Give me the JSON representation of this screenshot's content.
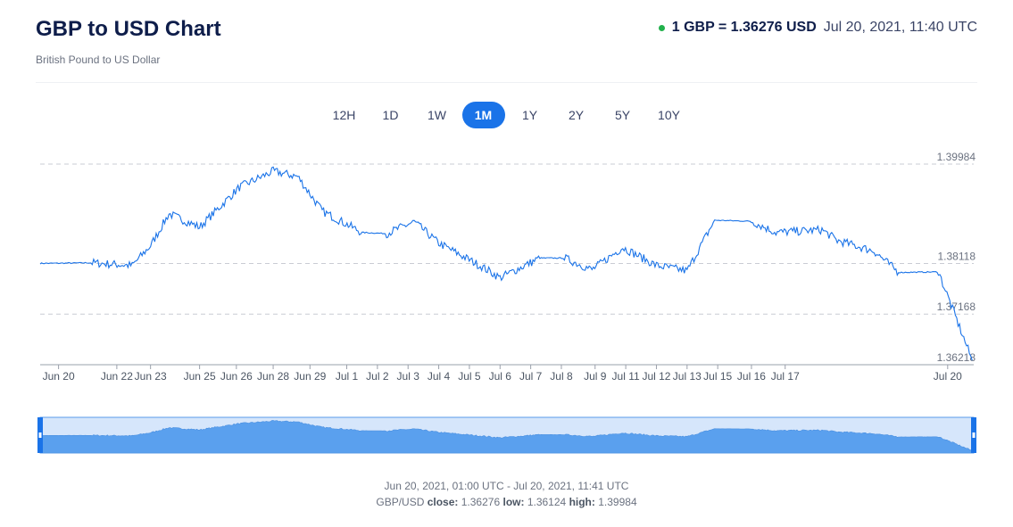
{
  "header": {
    "title": "GBP to USD Chart",
    "subtitle": "British Pound to US Dollar",
    "rate": "1 GBP = 1.36276 USD",
    "timestamp": "Jul 20, 2021, 11:40 UTC",
    "live_color": "#22b14c"
  },
  "tabs": [
    {
      "label": "12H"
    },
    {
      "label": "1D"
    },
    {
      "label": "1W"
    },
    {
      "label": "1M",
      "active": true
    },
    {
      "label": "1Y"
    },
    {
      "label": "2Y"
    },
    {
      "label": "5Y"
    },
    {
      "label": "10Y"
    }
  ],
  "footer": {
    "range": "Jun 20, 2021, 01:00 UTC - Jul 20, 2021, 11:41 UTC",
    "pair": "GBP/USD",
    "close_label": "close:",
    "close": "1.36276",
    "low_label": "low:",
    "low": "1.36124",
    "high_label": "high:",
    "high": "1.39984"
  },
  "chart_data": {
    "type": "line",
    "line_color": "#1a73e8",
    "ylim": [
      1.36218,
      1.39984
    ],
    "y_ticks": [
      "1.39984",
      "1.38118",
      "1.37168",
      "1.36218"
    ],
    "x_ticks": [
      "Jun 20",
      "Jun 22",
      "Jun 23",
      "Jun 25",
      "Jun 26",
      "Jun 28",
      "Jun 29",
      "Jul 1",
      "Jul 2",
      "Jul 3",
      "Jul 4",
      "Jul 5",
      "Jul 6",
      "Jul 7",
      "Jul 8",
      "Jul 9",
      "Jul 11",
      "Jul 12",
      "Jul 13",
      "Jul 15",
      "Jul 16",
      "Jul 17",
      "Jul 20"
    ],
    "grid": true,
    "series": [
      {
        "x": [
          0,
          1.7,
          3,
          3.6,
          4.2,
          5.2,
          6.5,
          7.6,
          8.4,
          9.2,
          10.5,
          11.3,
          12.2,
          13,
          14.4,
          15,
          16.3,
          17.1,
          18,
          19,
          20.1,
          21.1,
          22,
          23.2,
          24,
          25.5,
          26,
          27.2,
          28,
          29.3,
          30.4
        ],
        "y": [
          1.3812,
          1.3813,
          1.3808,
          1.3845,
          1.3905,
          1.388,
          1.3955,
          1.3985,
          1.3975,
          1.391,
          1.387,
          1.3868,
          1.389,
          1.385,
          1.3806,
          1.3785,
          1.3822,
          1.3822,
          1.38,
          1.3842,
          1.3808,
          1.3798,
          1.3893,
          1.3891,
          1.387,
          1.3875,
          1.3855,
          1.3835,
          1.3795,
          1.3796,
          1.363
        ]
      }
    ]
  }
}
